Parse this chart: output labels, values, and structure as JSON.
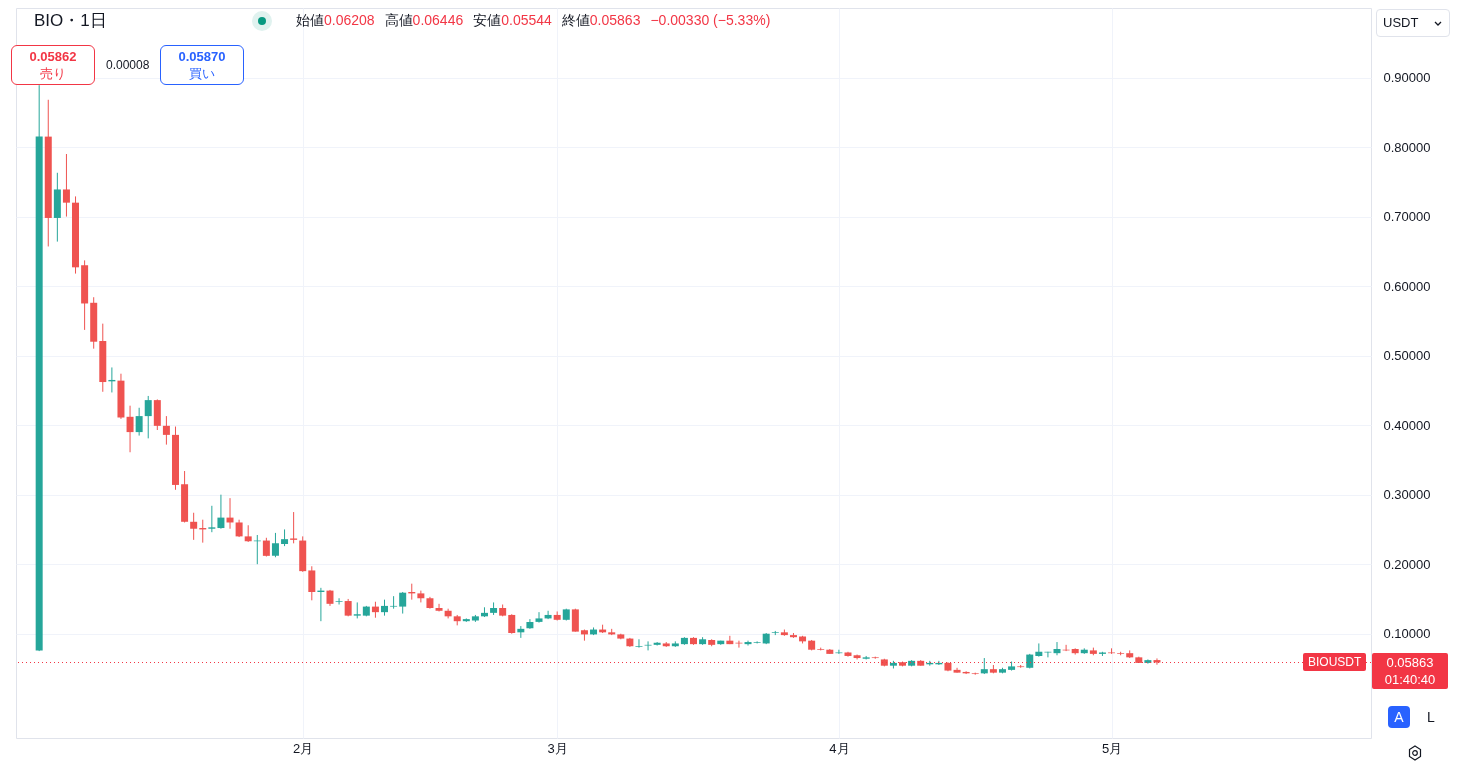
{
  "chart_data": {
    "type": "candlestick",
    "title": "BIO・1日",
    "ylabel": "USDT",
    "x": [
      "--01-03",
      "--01-04",
      "--01-05",
      "--01-06",
      "--01-07",
      "--01-08",
      "--01-09",
      "--01-10",
      "--01-11",
      "--01-12",
      "--01-13",
      "--01-14",
      "--01-15",
      "--01-16",
      "--01-17",
      "--01-18",
      "--01-19",
      "--01-20",
      "--01-21",
      "--01-22",
      "--01-23",
      "--01-24",
      "--01-25",
      "--01-26",
      "--01-27",
      "--01-28",
      "--01-29",
      "--01-30",
      "--01-31",
      "--02-01",
      "--02-02",
      "--02-03",
      "--02-04",
      "--02-05",
      "--02-06",
      "--02-07",
      "--02-08",
      "--02-09",
      "--02-10",
      "--02-11",
      "--02-12",
      "--02-13",
      "--02-14",
      "--02-15",
      "--02-16",
      "--02-17",
      "--02-18",
      "--02-19",
      "--02-20",
      "--02-21",
      "--02-22",
      "--02-23",
      "--02-24",
      "--02-25",
      "--02-26",
      "--02-27",
      "--02-28",
      "--03-01",
      "--03-02",
      "--03-03",
      "--03-04",
      "--03-05",
      "--03-06",
      "--03-07",
      "--03-08",
      "--03-09",
      "--03-10",
      "--03-11",
      "--03-12",
      "--03-13",
      "--03-14",
      "--03-15",
      "--03-16",
      "--03-17",
      "--03-18",
      "--03-19",
      "--03-20",
      "--03-21",
      "--03-22",
      "--03-23",
      "--03-24",
      "--03-25",
      "--03-26",
      "--03-27",
      "--03-28",
      "--03-29",
      "--03-30",
      "--03-31",
      "--04-01",
      "--04-02",
      "--04-03",
      "--04-04",
      "--04-05",
      "--04-06",
      "--04-07",
      "--04-08",
      "--04-09",
      "--04-10",
      "--04-11",
      "--04-12",
      "--04-13",
      "--04-14",
      "--04-15",
      "--04-16",
      "--04-17",
      "--04-18",
      "--04-19",
      "--04-20",
      "--04-21",
      "--04-22",
      "--04-23",
      "--04-24",
      "--04-25",
      "--04-26",
      "--04-27",
      "--04-28",
      "--04-29",
      "--04-30",
      "--05-01",
      "--05-02",
      "--05-03",
      "--05-04",
      "--05-05",
      "--05-06"
    ],
    "ohlc": [
      [
        0.076,
        0.889,
        0.075,
        0.815
      ],
      [
        0.815,
        0.868,
        0.657,
        0.698
      ],
      [
        0.698,
        0.763,
        0.664,
        0.739
      ],
      [
        0.739,
        0.79,
        0.7,
        0.72
      ],
      [
        0.72,
        0.729,
        0.618,
        0.627
      ],
      [
        0.63,
        0.637,
        0.537,
        0.575
      ],
      [
        0.576,
        0.584,
        0.51,
        0.52
      ],
      [
        0.521,
        0.546,
        0.448,
        0.462
      ],
      [
        0.463,
        0.483,
        0.447,
        0.465
      ],
      [
        0.464,
        0.474,
        0.409,
        0.411
      ],
      [
        0.412,
        0.428,
        0.361,
        0.39
      ],
      [
        0.39,
        0.425,
        0.385,
        0.413
      ],
      [
        0.413,
        0.442,
        0.381,
        0.436
      ],
      [
        0.436,
        0.437,
        0.393,
        0.399
      ],
      [
        0.399,
        0.413,
        0.372,
        0.386
      ],
      [
        0.386,
        0.398,
        0.307,
        0.314
      ],
      [
        0.315,
        0.334,
        0.26,
        0.261
      ],
      [
        0.261,
        0.274,
        0.235,
        0.251
      ],
      [
        0.252,
        0.264,
        0.231,
        0.25
      ],
      [
        0.251,
        0.284,
        0.246,
        0.253
      ],
      [
        0.252,
        0.3,
        0.251,
        0.267
      ],
      [
        0.267,
        0.295,
        0.251,
        0.26
      ],
      [
        0.26,
        0.264,
        0.239,
        0.24
      ],
      [
        0.24,
        0.256,
        0.232,
        0.233
      ],
      [
        0.233,
        0.242,
        0.2,
        0.234
      ],
      [
        0.234,
        0.238,
        0.211,
        0.212
      ],
      [
        0.212,
        0.245,
        0.21,
        0.23
      ],
      [
        0.229,
        0.25,
        0.226,
        0.236
      ],
      [
        0.237,
        0.275,
        0.23,
        0.235
      ],
      [
        0.234,
        0.24,
        0.189,
        0.19
      ],
      [
        0.191,
        0.197,
        0.148,
        0.16
      ],
      [
        0.16,
        0.166,
        0.118,
        0.162
      ],
      [
        0.162,
        0.163,
        0.14,
        0.143
      ],
      [
        0.146,
        0.151,
        0.142,
        0.147
      ],
      [
        0.147,
        0.15,
        0.125,
        0.126
      ],
      [
        0.126,
        0.145,
        0.122,
        0.128
      ],
      [
        0.126,
        0.14,
        0.125,
        0.139
      ],
      [
        0.139,
        0.146,
        0.123,
        0.131
      ],
      [
        0.131,
        0.149,
        0.126,
        0.14
      ],
      [
        0.139,
        0.154,
        0.136,
        0.14
      ],
      [
        0.139,
        0.16,
        0.129,
        0.159
      ],
      [
        0.16,
        0.172,
        0.149,
        0.158
      ],
      [
        0.158,
        0.162,
        0.145,
        0.151
      ],
      [
        0.151,
        0.153,
        0.136,
        0.137
      ],
      [
        0.137,
        0.143,
        0.132,
        0.133
      ],
      [
        0.133,
        0.136,
        0.122,
        0.125
      ],
      [
        0.125,
        0.127,
        0.112,
        0.118
      ],
      [
        0.118,
        0.122,
        0.117,
        0.121
      ],
      [
        0.119,
        0.127,
        0.117,
        0.125
      ],
      [
        0.125,
        0.138,
        0.124,
        0.13
      ],
      [
        0.13,
        0.145,
        0.127,
        0.137
      ],
      [
        0.137,
        0.142,
        0.125,
        0.126
      ],
      [
        0.127,
        0.128,
        0.1,
        0.101
      ],
      [
        0.102,
        0.111,
        0.094,
        0.107
      ],
      [
        0.108,
        0.121,
        0.107,
        0.117
      ],
      [
        0.117,
        0.131,
        0.116,
        0.122
      ],
      [
        0.122,
        0.133,
        0.121,
        0.127
      ],
      [
        0.127,
        0.132,
        0.119,
        0.12
      ],
      [
        0.12,
        0.136,
        0.119,
        0.135
      ],
      [
        0.135,
        0.136,
        0.103,
        0.103
      ],
      [
        0.105,
        0.106,
        0.09,
        0.099
      ],
      [
        0.099,
        0.109,
        0.098,
        0.106
      ],
      [
        0.106,
        0.113,
        0.101,
        0.102
      ],
      [
        0.102,
        0.107,
        0.098,
        0.099
      ],
      [
        0.099,
        0.1,
        0.092,
        0.093
      ],
      [
        0.093,
        0.094,
        0.081,
        0.082
      ],
      [
        0.081,
        0.092,
        0.08,
        0.082
      ],
      [
        0.083,
        0.089,
        0.076,
        0.084
      ],
      [
        0.084,
        0.088,
        0.083,
        0.087
      ],
      [
        0.086,
        0.088,
        0.081,
        0.082
      ],
      [
        0.082,
        0.089,
        0.081,
        0.086
      ],
      [
        0.085,
        0.095,
        0.084,
        0.094
      ],
      [
        0.094,
        0.095,
        0.084,
        0.085
      ],
      [
        0.085,
        0.095,
        0.084,
        0.092
      ],
      [
        0.091,
        0.092,
        0.082,
        0.084
      ],
      [
        0.085,
        0.09,
        0.084,
        0.09
      ],
      [
        0.09,
        0.097,
        0.085,
        0.085
      ],
      [
        0.087,
        0.09,
        0.08,
        0.086
      ],
      [
        0.085,
        0.09,
        0.083,
        0.088
      ],
      [
        0.087,
        0.089,
        0.086,
        0.088
      ],
      [
        0.086,
        0.101,
        0.085,
        0.1
      ],
      [
        0.101,
        0.104,
        0.098,
        0.102
      ],
      [
        0.102,
        0.106,
        0.097,
        0.098
      ],
      [
        0.098,
        0.101,
        0.094,
        0.095
      ],
      [
        0.096,
        0.097,
        0.086,
        0.089
      ],
      [
        0.09,
        0.091,
        0.076,
        0.077
      ],
      [
        0.078,
        0.08,
        0.076,
        0.077
      ],
      [
        0.077,
        0.078,
        0.071,
        0.071
      ],
      [
        0.072,
        0.077,
        0.071,
        0.073
      ],
      [
        0.073,
        0.074,
        0.067,
        0.068
      ],
      [
        0.069,
        0.07,
        0.063,
        0.065
      ],
      [
        0.064,
        0.068,
        0.063,
        0.066
      ],
      [
        0.066,
        0.067,
        0.064,
        0.065
      ],
      [
        0.063,
        0.064,
        0.053,
        0.054
      ],
      [
        0.054,
        0.061,
        0.05,
        0.058
      ],
      [
        0.059,
        0.06,
        0.053,
        0.054
      ],
      [
        0.054,
        0.062,
        0.053,
        0.061
      ],
      [
        0.061,
        0.062,
        0.054,
        0.054
      ],
      [
        0.056,
        0.061,
        0.054,
        0.058
      ],
      [
        0.056,
        0.061,
        0.055,
        0.058
      ],
      [
        0.058,
        0.059,
        0.046,
        0.047
      ],
      [
        0.048,
        0.051,
        0.044,
        0.044
      ],
      [
        0.045,
        0.046,
        0.042,
        0.043
      ],
      [
        0.043,
        0.044,
        0.041,
        0.042
      ],
      [
        0.043,
        0.065,
        0.042,
        0.049
      ],
      [
        0.049,
        0.055,
        0.043,
        0.044
      ],
      [
        0.044,
        0.051,
        0.043,
        0.049
      ],
      [
        0.048,
        0.06,
        0.047,
        0.053
      ],
      [
        0.053,
        0.055,
        0.051,
        0.052
      ],
      [
        0.051,
        0.071,
        0.05,
        0.07
      ],
      [
        0.068,
        0.086,
        0.067,
        0.074
      ],
      [
        0.073,
        0.074,
        0.066,
        0.074
      ],
      [
        0.072,
        0.088,
        0.069,
        0.078
      ],
      [
        0.077,
        0.084,
        0.075,
        0.076
      ],
      [
        0.078,
        0.079,
        0.07,
        0.072
      ],
      [
        0.072,
        0.079,
        0.071,
        0.077
      ],
      [
        0.076,
        0.08,
        0.069,
        0.071
      ],
      [
        0.071,
        0.074,
        0.068,
        0.073
      ],
      [
        0.073,
        0.079,
        0.071,
        0.072
      ],
      [
        0.072,
        0.074,
        0.069,
        0.071
      ],
      [
        0.072,
        0.076,
        0.065,
        0.066
      ],
      [
        0.066,
        0.067,
        0.058,
        0.058
      ],
      [
        0.058,
        0.063,
        0.057,
        0.062
      ],
      [
        0.06208,
        0.06446,
        0.05544,
        0.05863
      ]
    ],
    "xlim": [
      "--01-01",
      "--05-29"
    ],
    "xticks": [
      {
        "value": "--02-01",
        "label": "2月"
      },
      {
        "value": "--03-01",
        "label": "3月"
      },
      {
        "value": "--04-01",
        "label": "4月"
      },
      {
        "value": "--05-01",
        "label": "5月"
      }
    ],
    "ylim": [
      -0.05,
      1.0
    ],
    "yticks": [
      {
        "value": 0.1,
        "label": "0.10000"
      },
      {
        "value": 0.2,
        "label": "0.20000"
      },
      {
        "value": 0.3,
        "label": "0.30000"
      },
      {
        "value": 0.4,
        "label": "0.40000"
      },
      {
        "value": 0.5,
        "label": "0.50000"
      },
      {
        "value": 0.6,
        "label": "0.60000"
      },
      {
        "value": 0.7,
        "label": "0.70000"
      },
      {
        "value": 0.8,
        "label": "0.80000"
      },
      {
        "value": 0.9,
        "label": "0.90000"
      }
    ],
    "ref_lines": [
      {
        "axis": "y",
        "value": 0.05863,
        "label": "0.05863",
        "color": "#f23645",
        "line_style": "dotted"
      }
    ],
    "annotations": [
      "始値",
      "0.06208",
      "高値",
      "0.06446",
      "安値",
      "0.05544",
      "終値",
      "0.05863",
      "−0.00330 (−5.33%)",
      "0.05862",
      "売り",
      "0.00008",
      "0.05870",
      "買い",
      "BIOUSDT",
      "01:40:40",
      "A",
      "L"
    ],
    "grid": true,
    "legend": false
  }
}
